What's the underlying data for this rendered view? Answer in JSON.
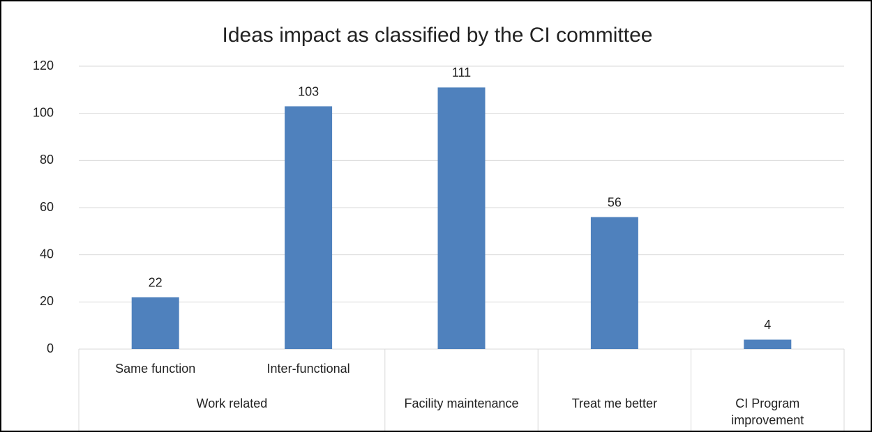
{
  "chart_data": {
    "type": "bar",
    "title": "Ideas impact as classified by the CI committee",
    "groups": [
      {
        "name": "Work related",
        "categories": [
          "Same function",
          "Inter-functional"
        ],
        "values": [
          22,
          103
        ]
      },
      {
        "name": "Facility maintenance",
        "categories": [
          null
        ],
        "values": [
          111
        ]
      },
      {
        "name": "Treat me better",
        "categories": [
          null
        ],
        "values": [
          56
        ]
      },
      {
        "name": "CI Program improvement",
        "categories": [
          null
        ],
        "values": [
          4
        ]
      }
    ],
    "color": "#4f81bd",
    "ylim": [
      0,
      120
    ],
    "yticks": [
      0,
      20,
      40,
      60,
      80,
      100,
      120
    ],
    "grid": true,
    "data_labels": true
  }
}
